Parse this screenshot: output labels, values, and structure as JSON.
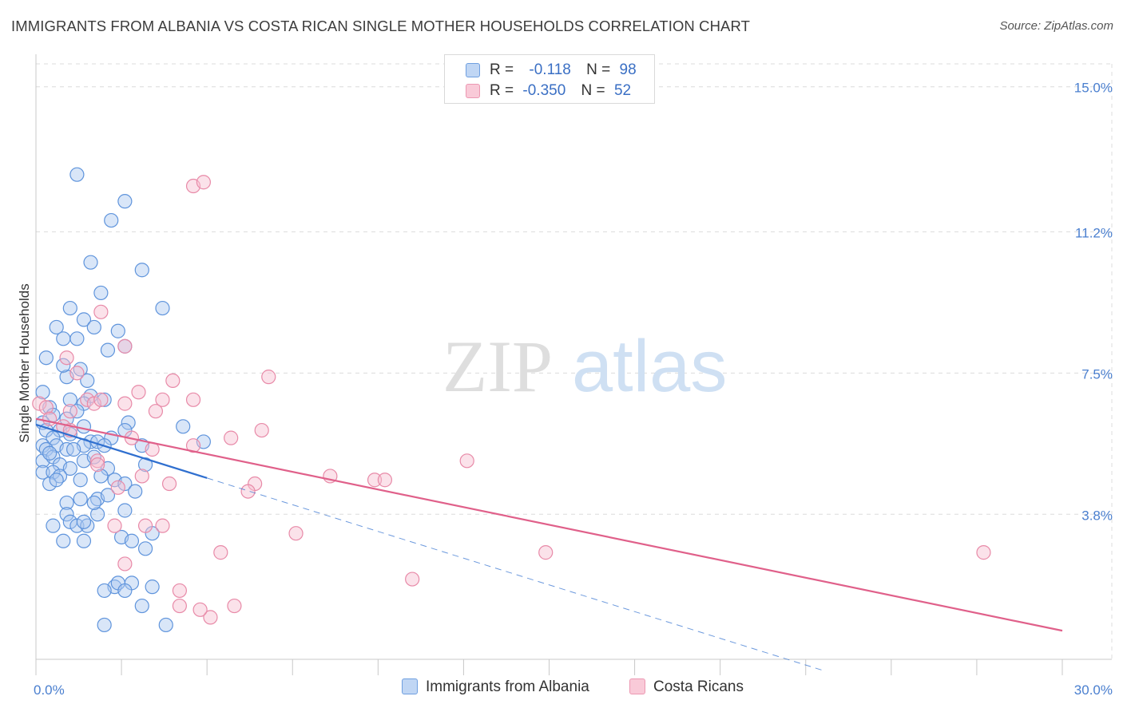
{
  "title": "IMMIGRANTS FROM ALBANIA VS COSTA RICAN SINGLE MOTHER HOUSEHOLDS CORRELATION CHART",
  "source": "Source: ZipAtlas.com",
  "watermark": {
    "zip": "ZIP",
    "atlas": "atlas"
  },
  "legend_top": [
    {
      "r_label": "R =",
      "r_value": "-0.118",
      "n_label": "N =",
      "n_value": "98"
    },
    {
      "r_label": "R =",
      "r_value": "-0.350",
      "n_label": "N =",
      "n_value": "52"
    }
  ],
  "colors": {
    "albania_fill": "#aac8f0",
    "albania_stroke": "#5f94dc",
    "albania_line": "#2f6fcf",
    "costa_fill": "#f7bfd0",
    "costa_stroke": "#e88aa8",
    "costa_line": "#e0608a",
    "grid": "#dcdcdc",
    "tick_text": "#4a7fcf"
  },
  "chart_data": {
    "type": "scatter",
    "title": "IMMIGRANTS FROM ALBANIA VS COSTA RICAN SINGLE MOTHER HOUSEHOLDS CORRELATION CHART",
    "xlabel": "",
    "ylabel": "Single Mother Households",
    "xlim": [
      0,
      30
    ],
    "ylim": [
      0,
      15.6
    ],
    "y_ticks": [
      3.8,
      7.5,
      11.2,
      15.0
    ],
    "y_tick_labels": [
      "3.8%",
      "7.5%",
      "11.2%",
      "15.0%"
    ],
    "x_tick_labels": [
      "0.0%",
      "30.0%"
    ],
    "legend": [
      "Immigrants from Albania",
      "Costa Ricans"
    ],
    "series": [
      {
        "name": "Immigrants from Albania",
        "r": -0.118,
        "n": 98,
        "trend": {
          "x0": 0,
          "y0": 6.15,
          "x1": 5.0,
          "y1": 4.75,
          "dashed_to_x": 23
        },
        "points": [
          [
            1.2,
            12.7
          ],
          [
            2.6,
            12.0
          ],
          [
            2.2,
            11.5
          ],
          [
            1.6,
            10.4
          ],
          [
            3.1,
            10.2
          ],
          [
            1.9,
            9.6
          ],
          [
            1.0,
            9.2
          ],
          [
            3.7,
            9.2
          ],
          [
            1.4,
            8.9
          ],
          [
            1.7,
            8.7
          ],
          [
            0.6,
            8.7
          ],
          [
            2.4,
            8.6
          ],
          [
            0.8,
            8.4
          ],
          [
            1.2,
            8.4
          ],
          [
            2.6,
            8.2
          ],
          [
            0.3,
            7.9
          ],
          [
            1.3,
            7.6
          ],
          [
            0.9,
            7.4
          ],
          [
            1.5,
            7.3
          ],
          [
            0.2,
            7.0
          ],
          [
            1.6,
            6.9
          ],
          [
            1.0,
            6.8
          ],
          [
            1.4,
            6.7
          ],
          [
            2.0,
            6.8
          ],
          [
            0.4,
            6.6
          ],
          [
            1.2,
            6.5
          ],
          [
            0.5,
            6.4
          ],
          [
            0.9,
            6.3
          ],
          [
            0.2,
            6.2
          ],
          [
            2.7,
            6.2
          ],
          [
            4.3,
            6.1
          ],
          [
            0.3,
            6.0
          ],
          [
            0.7,
            6.0
          ],
          [
            1.0,
            5.9
          ],
          [
            0.5,
            5.8
          ],
          [
            2.2,
            5.8
          ],
          [
            1.6,
            5.7
          ],
          [
            4.9,
            5.7
          ],
          [
            0.2,
            5.6
          ],
          [
            0.6,
            5.6
          ],
          [
            0.9,
            5.5
          ],
          [
            1.4,
            5.6
          ],
          [
            1.8,
            5.7
          ],
          [
            0.3,
            5.5
          ],
          [
            1.1,
            5.5
          ],
          [
            2.6,
            6.0
          ],
          [
            0.2,
            5.2
          ],
          [
            0.5,
            5.3
          ],
          [
            0.7,
            5.1
          ],
          [
            1.0,
            5.0
          ],
          [
            1.4,
            5.2
          ],
          [
            1.7,
            5.3
          ],
          [
            2.1,
            5.0
          ],
          [
            3.2,
            5.1
          ],
          [
            0.2,
            4.9
          ],
          [
            0.5,
            4.9
          ],
          [
            0.7,
            4.8
          ],
          [
            1.3,
            4.7
          ],
          [
            0.4,
            4.6
          ],
          [
            0.6,
            4.7
          ],
          [
            1.9,
            4.8
          ],
          [
            2.3,
            4.7
          ],
          [
            2.6,
            4.6
          ],
          [
            2.9,
            4.4
          ],
          [
            1.8,
            4.2
          ],
          [
            0.9,
            4.1
          ],
          [
            1.3,
            4.2
          ],
          [
            2.1,
            4.3
          ],
          [
            2.6,
            3.9
          ],
          [
            0.9,
            3.8
          ],
          [
            1.8,
            3.8
          ],
          [
            1.0,
            3.6
          ],
          [
            1.2,
            3.5
          ],
          [
            1.5,
            3.5
          ],
          [
            0.5,
            3.5
          ],
          [
            1.4,
            3.6
          ],
          [
            3.4,
            3.3
          ],
          [
            2.5,
            3.2
          ],
          [
            0.8,
            3.1
          ],
          [
            1.4,
            3.1
          ],
          [
            2.8,
            3.1
          ],
          [
            3.2,
            2.9
          ],
          [
            2.3,
            1.9
          ],
          [
            2.4,
            2.0
          ],
          [
            2.8,
            2.0
          ],
          [
            2.0,
            1.8
          ],
          [
            2.6,
            1.8
          ],
          [
            3.4,
            1.9
          ],
          [
            3.1,
            1.4
          ],
          [
            2.0,
            0.9
          ],
          [
            3.8,
            0.9
          ],
          [
            1.4,
            6.1
          ],
          [
            2.0,
            5.6
          ],
          [
            1.7,
            4.1
          ],
          [
            0.8,
            7.7
          ],
          [
            2.1,
            8.1
          ],
          [
            0.4,
            5.4
          ],
          [
            3.1,
            5.6
          ]
        ]
      },
      {
        "name": "Costa Ricans",
        "r": -0.35,
        "n": 52,
        "trend": {
          "x0": 0,
          "y0": 6.3,
          "x1": 30,
          "y1": 0.75
        },
        "points": [
          [
            4.6,
            12.4
          ],
          [
            4.9,
            12.5
          ],
          [
            1.9,
            9.1
          ],
          [
            2.6,
            8.2
          ],
          [
            0.9,
            7.9
          ],
          [
            1.2,
            7.5
          ],
          [
            6.8,
            7.4
          ],
          [
            4.0,
            7.3
          ],
          [
            3.0,
            7.0
          ],
          [
            1.5,
            6.8
          ],
          [
            1.7,
            6.7
          ],
          [
            3.7,
            6.8
          ],
          [
            4.6,
            6.8
          ],
          [
            0.1,
            6.7
          ],
          [
            0.3,
            6.6
          ],
          [
            1.0,
            6.5
          ],
          [
            2.6,
            6.7
          ],
          [
            3.5,
            6.5
          ],
          [
            1.9,
            6.8
          ],
          [
            0.4,
            6.3
          ],
          [
            0.8,
            6.1
          ],
          [
            1.0,
            6.0
          ],
          [
            6.6,
            6.0
          ],
          [
            2.8,
            5.8
          ],
          [
            5.7,
            5.8
          ],
          [
            4.6,
            5.6
          ],
          [
            3.4,
            5.5
          ],
          [
            1.8,
            5.2
          ],
          [
            12.6,
            5.2
          ],
          [
            1.8,
            5.1
          ],
          [
            8.6,
            4.8
          ],
          [
            9.9,
            4.7
          ],
          [
            10.2,
            4.7
          ],
          [
            6.4,
            4.6
          ],
          [
            3.9,
            4.6
          ],
          [
            2.4,
            4.5
          ],
          [
            6.2,
            4.4
          ],
          [
            3.1,
            4.8
          ],
          [
            2.3,
            3.5
          ],
          [
            3.2,
            3.5
          ],
          [
            3.7,
            3.5
          ],
          [
            7.6,
            3.3
          ],
          [
            5.4,
            2.8
          ],
          [
            14.9,
            2.8
          ],
          [
            27.7,
            2.8
          ],
          [
            2.6,
            2.5
          ],
          [
            11.0,
            2.1
          ],
          [
            4.2,
            1.8
          ],
          [
            4.2,
            1.4
          ],
          [
            5.8,
            1.4
          ],
          [
            5.1,
            1.1
          ],
          [
            4.8,
            1.3
          ]
        ]
      }
    ]
  }
}
